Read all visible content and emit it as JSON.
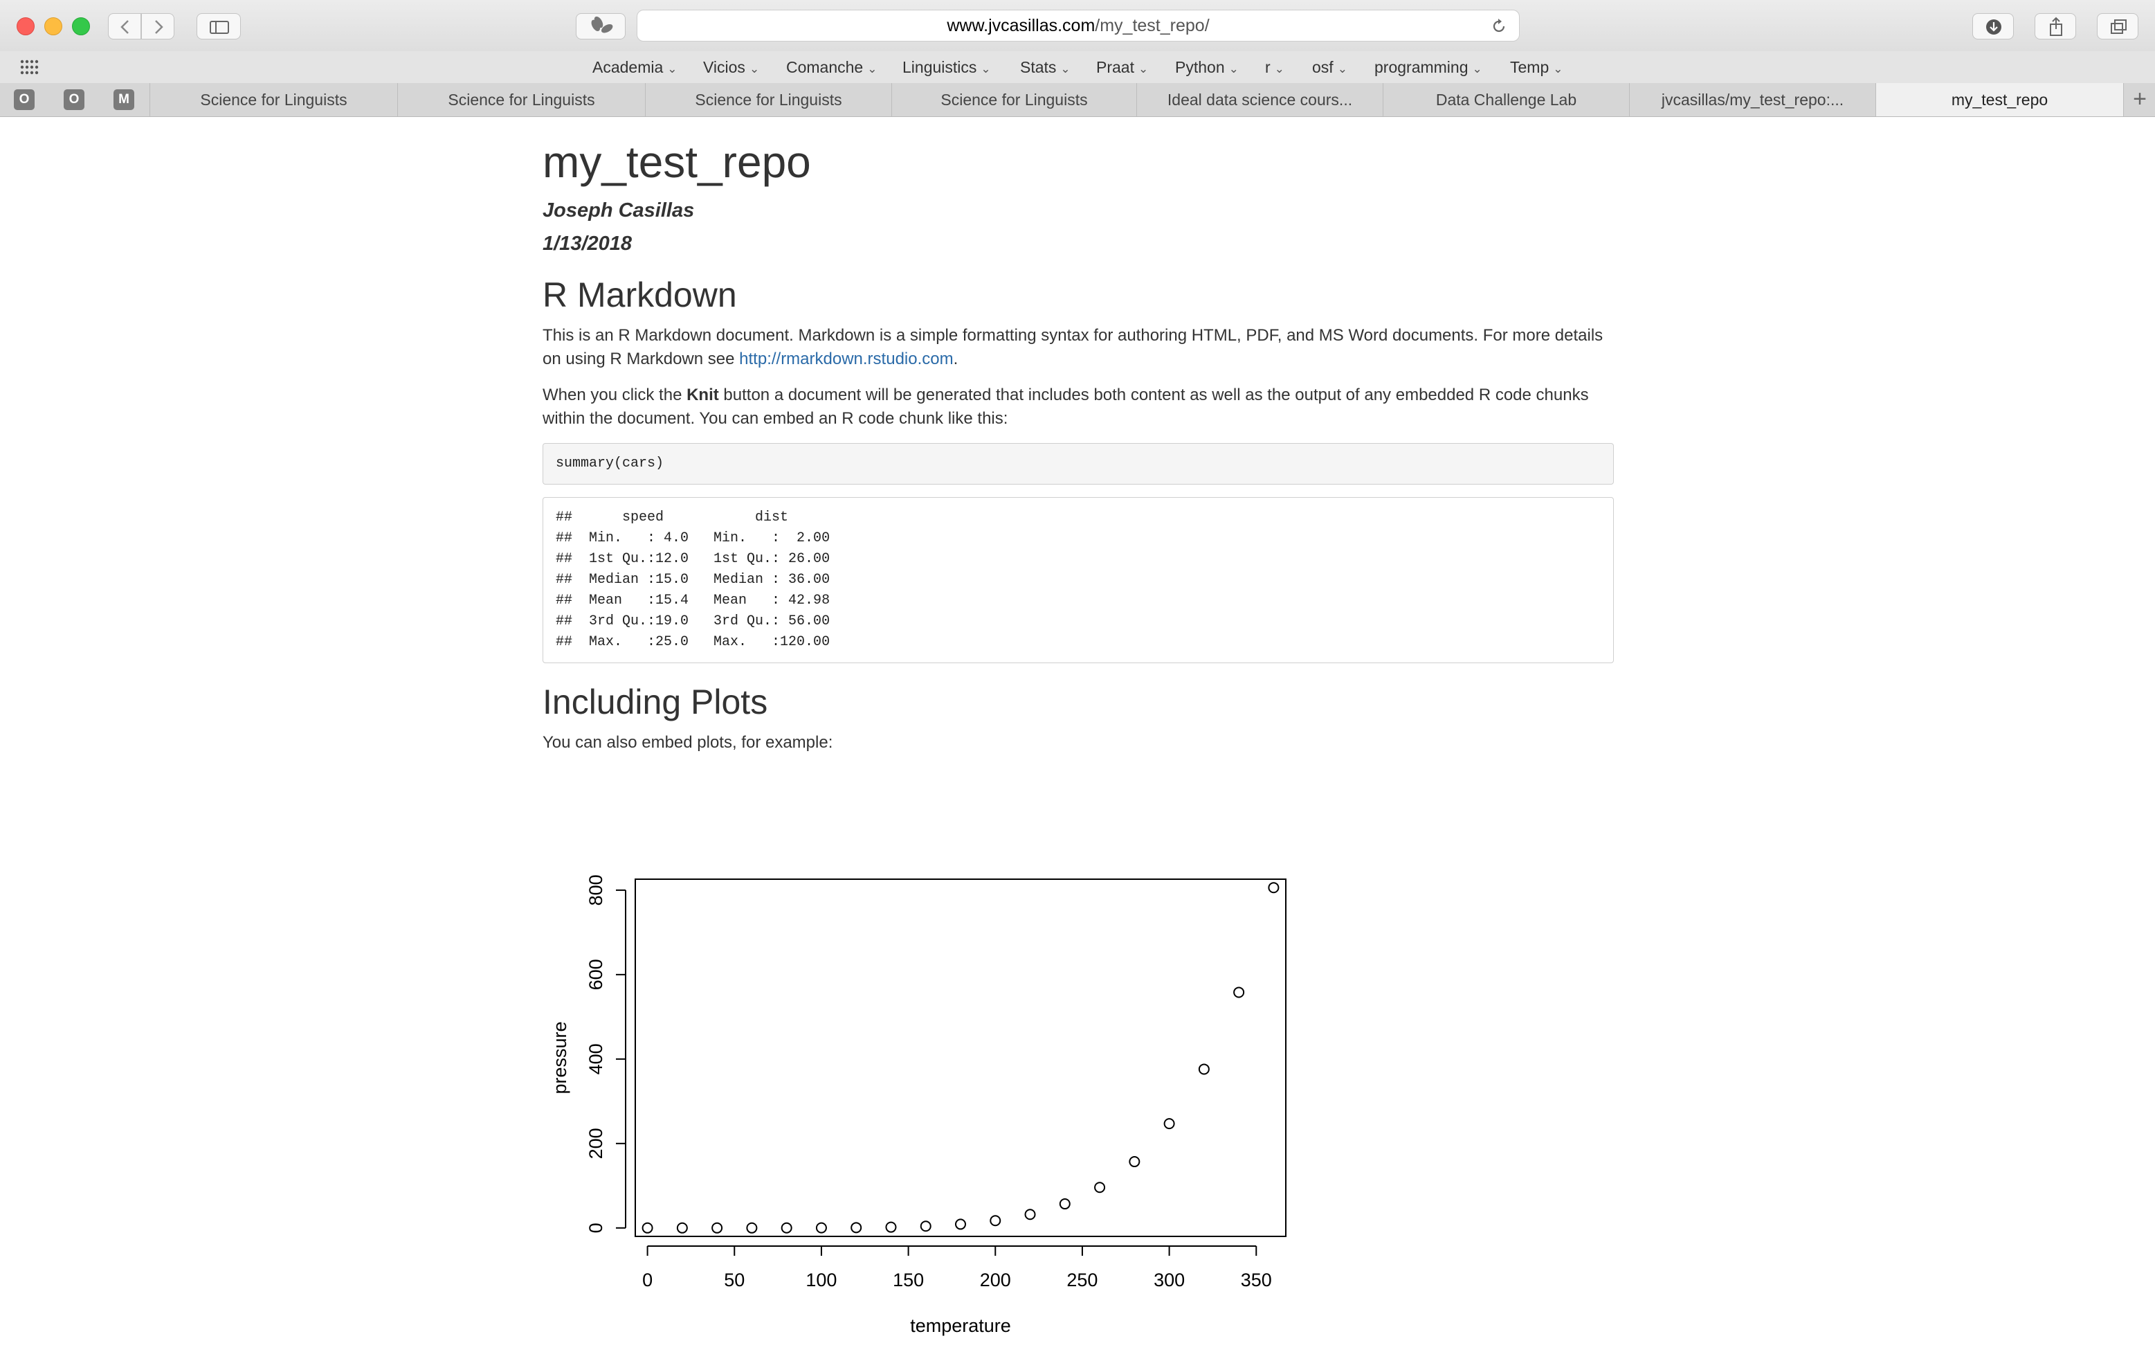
{
  "browser": {
    "url_domain": "www.jvcasillas.com",
    "url_path": "/my_test_repo/",
    "favorites": [
      "Academia",
      "Vicios",
      "Comanche",
      "Linguistics",
      "Stats",
      "Praat",
      "Python",
      "r",
      "osf",
      "programming",
      "Temp"
    ],
    "pinned_tabs": [
      "O",
      "O",
      "M"
    ],
    "tabs": [
      "Science for Linguists",
      "Science for Linguists",
      "Science for Linguists",
      "Science for Linguists",
      "Ideal data science cours...",
      "Data Challenge Lab",
      "jvcasillas/my_test_repo:...",
      "my_test_repo"
    ],
    "active_tab": 7
  },
  "doc": {
    "title": "my_test_repo",
    "author": "Joseph Casillas",
    "date": "1/13/2018",
    "section1_heading": "R Markdown",
    "para1_text": "This is an R Markdown document. Markdown is a simple formatting syntax for authoring HTML, PDF, and MS Word documents. For more details on using R Markdown see ",
    "para1_link": "http://rmarkdown.rstudio.com",
    "para1_end": ".",
    "para2_start": "When you click the ",
    "para2_bold": "Knit",
    "para2_end": " button a document will be generated that includes both content as well as the output of any embedded R code chunks within the document. You can embed an R code chunk like this:",
    "code": "summary(cars)",
    "output": "##      speed           dist       \n##  Min.   : 4.0   Min.   :  2.00  \n##  1st Qu.:12.0   1st Qu.: 26.00  \n##  Median :15.0   Median : 36.00  \n##  Mean   :15.4   Mean   : 42.98  \n##  3rd Qu.:19.0   3rd Qu.: 56.00  \n##  Max.   :25.0   Max.   :120.00  ",
    "section2_heading": "Including Plots",
    "para3": "You can also embed plots, for example:"
  },
  "chart_data": {
    "type": "scatter",
    "xlabel": "temperature",
    "ylabel": "pressure",
    "xticks": [
      0,
      50,
      100,
      150,
      200,
      250,
      300,
      350
    ],
    "yticks": [
      0,
      200,
      400,
      600,
      800
    ],
    "xlim": [
      -7,
      367
    ],
    "ylim": [
      -20,
      826
    ],
    "x": [
      0,
      20,
      40,
      60,
      80,
      100,
      120,
      140,
      160,
      180,
      200,
      220,
      240,
      260,
      280,
      300,
      320,
      340,
      360
    ],
    "y": [
      0.0002,
      0.0012,
      0.006,
      0.03,
      0.09,
      0.27,
      0.75,
      1.85,
      4.2,
      8.8,
      17.3,
      32.1,
      57,
      96,
      157,
      247,
      376,
      558,
      806
    ]
  }
}
